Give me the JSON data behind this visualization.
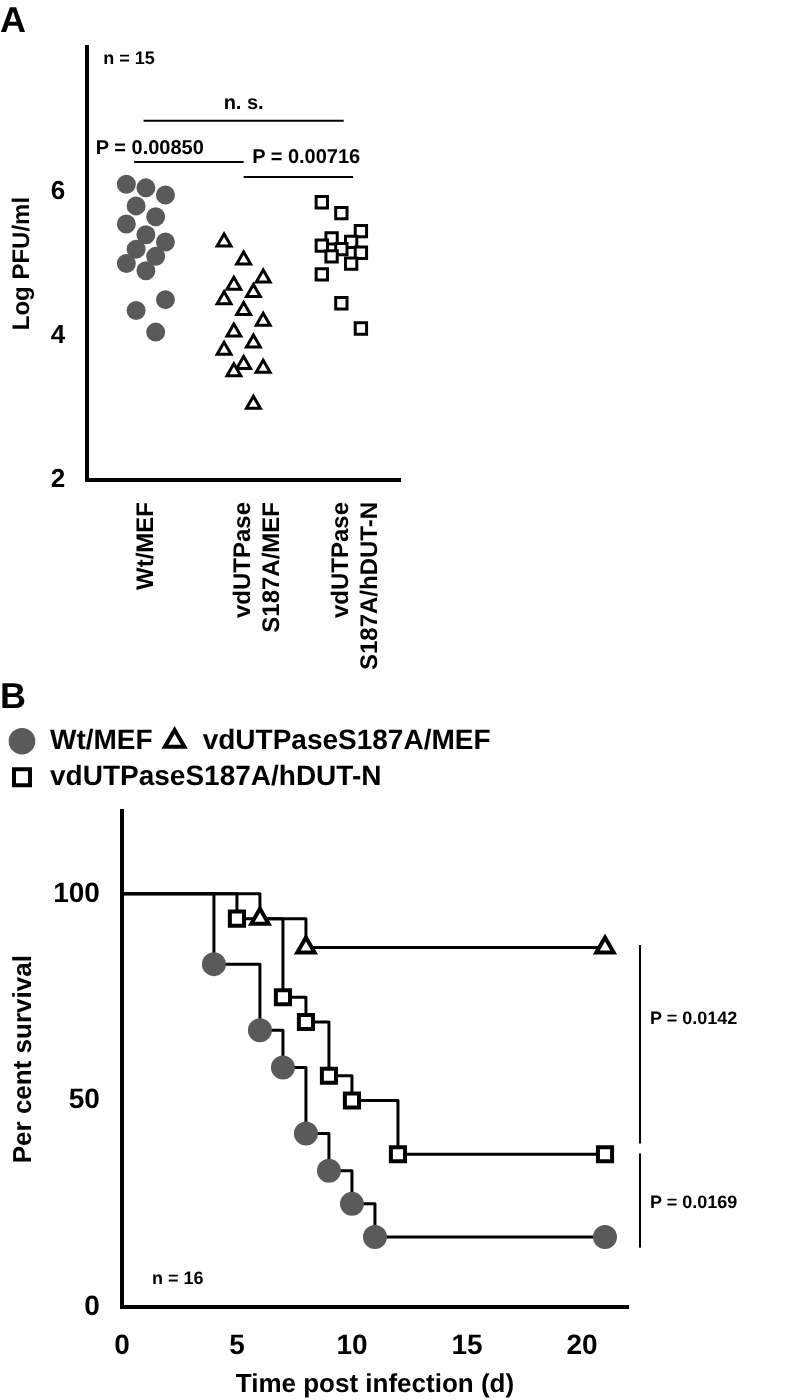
{
  "chart_data": [
    {
      "type": "scatter",
      "title": "A",
      "ylabel": "Log PFU/ml",
      "categories": [
        "Wt/MEF",
        "vdUTPase S187A/MEF",
        "vdUTPase S187A/hDUT-N"
      ],
      "ylim": [
        2,
        8
      ],
      "yticks": [
        2,
        4,
        6
      ],
      "grid": false,
      "legend": false,
      "annotations": [
        "n = 15",
        "n. s.",
        "P = 0.00850",
        "P = 0.00716"
      ],
      "series": [
        {
          "marker": "circle",
          "color": "#5a5a5a",
          "x": [
            "Wt/MEF",
            "Wt/MEF",
            "Wt/MEF",
            "Wt/MEF",
            "Wt/MEF",
            "Wt/MEF",
            "Wt/MEF",
            "Wt/MEF",
            "Wt/MEF",
            "Wt/MEF",
            "Wt/MEF",
            "Wt/MEF",
            "Wt/MEF",
            "Wt/MEF",
            "Wt/MEF"
          ],
          "values": [
            6.1,
            6.05,
            5.95,
            5.8,
            5.65,
            5.55,
            5.4,
            5.3,
            5.2,
            5.1,
            5.0,
            4.9,
            4.5,
            4.35,
            4.05
          ]
        },
        {
          "marker": "triangle",
          "color": "#000000",
          "x": [
            "vdUTPase S187A/MEF",
            "vdUTPase S187A/MEF",
            "vdUTPase S187A/MEF",
            "vdUTPase S187A/MEF",
            "vdUTPase S187A/MEF",
            "vdUTPase S187A/MEF",
            "vdUTPase S187A/MEF",
            "vdUTPase S187A/MEF",
            "vdUTPase S187A/MEF",
            "vdUTPase S187A/MEF",
            "vdUTPase S187A/MEF",
            "vdUTPase S187A/MEF",
            "vdUTPase S187A/MEF",
            "vdUTPase S187A/MEF",
            "vdUTPase S187A/MEF"
          ],
          "values": [
            5.3,
            5.05,
            4.8,
            4.7,
            4.6,
            4.5,
            4.35,
            4.2,
            4.05,
            3.9,
            3.8,
            3.6,
            3.55,
            3.5,
            3.05
          ]
        },
        {
          "marker": "square",
          "color": "#000000",
          "x": [
            "vdUTPase S187A/hDUT-N",
            "vdUTPase S187A/hDUT-N",
            "vdUTPase S187A/hDUT-N",
            "vdUTPase S187A/hDUT-N",
            "vdUTPase S187A/hDUT-N",
            "vdUTPase S187A/hDUT-N",
            "vdUTPase S187A/hDUT-N",
            "vdUTPase S187A/hDUT-N",
            "vdUTPase S187A/hDUT-N",
            "vdUTPase S187A/hDUT-N",
            "vdUTPase S187A/hDUT-N",
            "vdUTPase S187A/hDUT-N",
            "vdUTPase S187A/hDUT-N"
          ],
          "values": [
            5.85,
            5.7,
            5.45,
            5.35,
            5.3,
            5.25,
            5.2,
            5.15,
            5.1,
            5.0,
            4.85,
            4.45,
            4.1
          ]
        }
      ]
    },
    {
      "type": "step",
      "title": "B",
      "xlabel": "Time post infection (d)",
      "ylabel": "Per cent survival",
      "xlim": [
        0,
        22
      ],
      "xticks": [
        0,
        5,
        10,
        15,
        20
      ],
      "ylim": [
        0,
        120
      ],
      "yticks": [
        0,
        50,
        100
      ],
      "grid": false,
      "legend": "top left",
      "annotations": [
        "P = 0.0142",
        "P = 0.0169",
        "n = 16"
      ],
      "series": [
        {
          "name": "Wt/MEF",
          "marker": "circle",
          "color": "#5a5a5a",
          "x": [
            0,
            4,
            6,
            7,
            8,
            9,
            10,
            11,
            21
          ],
          "values": [
            100,
            83,
            67,
            58,
            42,
            33,
            25,
            17,
            17
          ]
        },
        {
          "name": "vdUTPaseS187A/MEF",
          "marker": "triangle",
          "color": "#000000",
          "x": [
            0,
            6,
            8,
            21
          ],
          "values": [
            100,
            94,
            87,
            87
          ]
        },
        {
          "name": "vdUTPaseS187A/hDUT-N",
          "marker": "square",
          "color": "#000000",
          "x": [
            0,
            5,
            7,
            8,
            9,
            10,
            12,
            21
          ],
          "values": [
            100,
            94,
            75,
            69,
            56,
            50,
            37,
            37
          ]
        }
      ]
    }
  ]
}
